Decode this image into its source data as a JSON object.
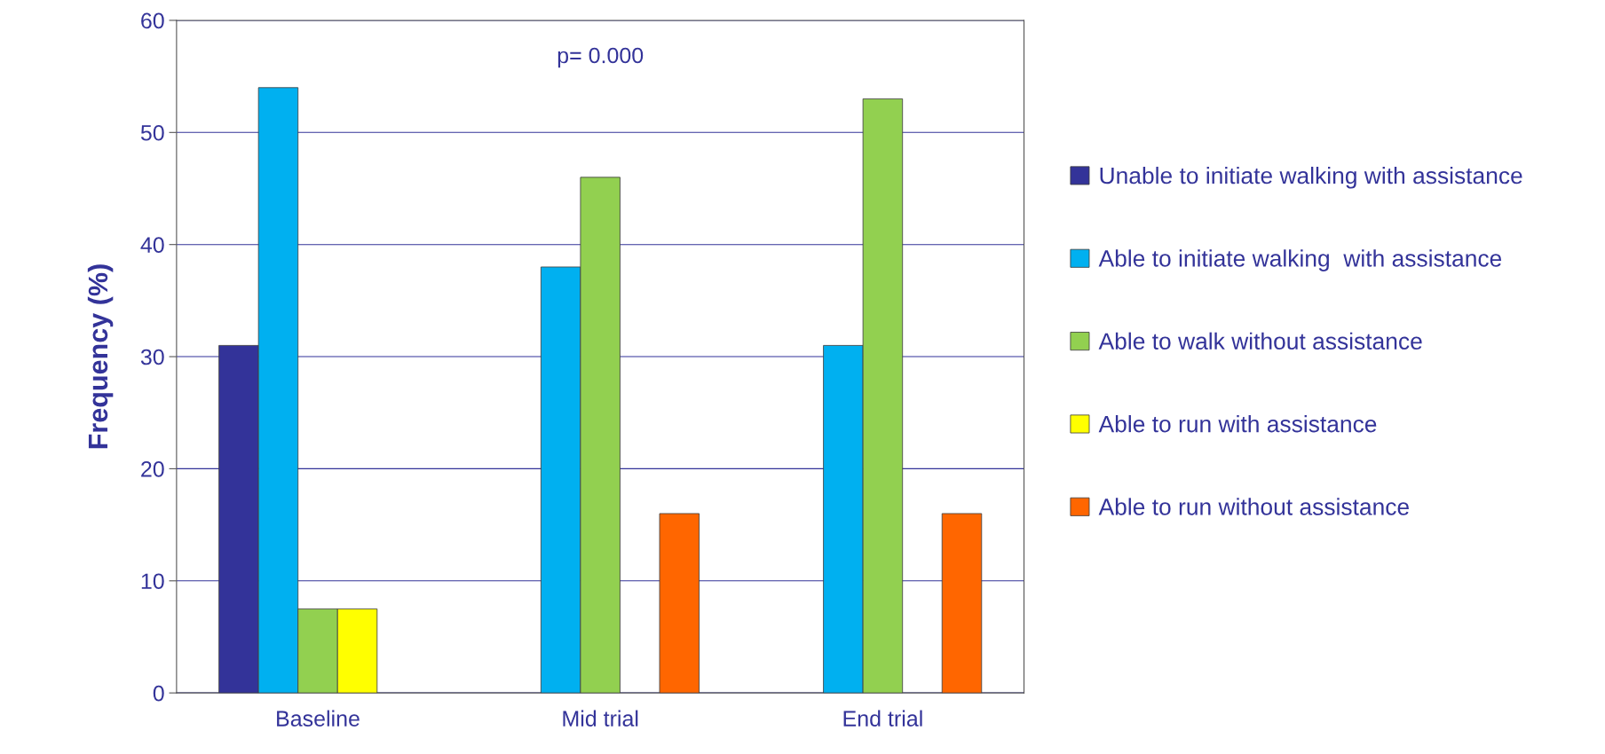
{
  "chart_data": {
    "type": "bar",
    "ylabel": "Frequency (%)",
    "categories": [
      "Baseline",
      "Mid trial",
      "End trial"
    ],
    "series": [
      {
        "name": "Unable to initiate walking with assistance",
        "color": "#333399",
        "values": [
          31,
          null,
          null
        ]
      },
      {
        "name": "Able to initiate walking  with assistance",
        "color": "#00b0f0",
        "values": [
          54,
          38,
          31
        ]
      },
      {
        "name": "Able to walk without assistance",
        "color": "#92d050",
        "values": [
          7.5,
          46,
          53
        ]
      },
      {
        "name": "Able to run with assistance",
        "color": "#ffff00",
        "values": [
          7.5,
          null,
          null
        ]
      },
      {
        "name": "Able to run without assistance",
        "color": "#ff6600",
        "values": [
          null,
          16,
          16
        ]
      }
    ],
    "ylim": [
      0,
      60
    ],
    "yticks": [
      0,
      10,
      20,
      30,
      40,
      50,
      60
    ],
    "grid": "y",
    "legend": "right",
    "annotations": [
      "p= 0.000"
    ]
  }
}
